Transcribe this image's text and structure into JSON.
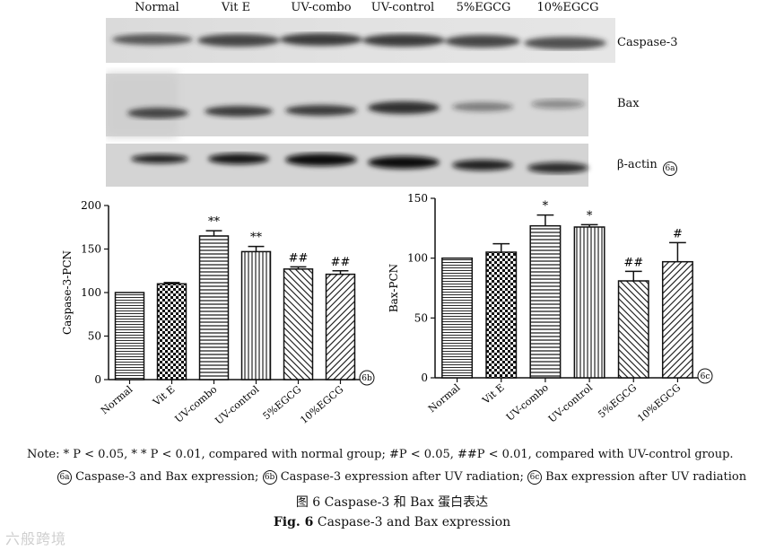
{
  "blot": {
    "lanes": [
      "Normal",
      "Vit E",
      "UV-combo",
      "UV-control",
      "5%EGCG",
      "10%EGCG"
    ],
    "bands": [
      "Caspase-3",
      "Bax",
      "β-actin"
    ],
    "badge": "6a"
  },
  "chart_data": [
    {
      "type": "bar",
      "ylabel": "Caspase-3-PCN",
      "categories": [
        "Normal",
        "Vit E",
        "UV-combo",
        "UV-control",
        "5%EGCG",
        "10%EGCG"
      ],
      "values": [
        100,
        110,
        165,
        147,
        127,
        121
      ],
      "errors": [
        0,
        1.5,
        6,
        6,
        2.5,
        4
      ],
      "annotations": [
        "",
        "",
        "**",
        "**",
        "##",
        "##"
      ],
      "ylim": [
        0,
        200
      ],
      "yticks": [
        "0",
        "50",
        "100",
        "150",
        "200"
      ],
      "badge": "6b"
    },
    {
      "type": "bar",
      "ylabel": "Bax-PCN",
      "categories": [
        "Normal",
        "Vit E",
        "UV-combo",
        "UV-control",
        "5%EGCG",
        "10%EGCG"
      ],
      "values": [
        100,
        105,
        127,
        126,
        81,
        97
      ],
      "errors": [
        0,
        7,
        9,
        2,
        8,
        16
      ],
      "annotations": [
        "",
        "",
        "*",
        "*",
        "##",
        "#"
      ],
      "ylim": [
        0,
        150
      ],
      "yticks": [
        "0",
        "50",
        "100",
        "150"
      ],
      "badge": "6c"
    }
  ],
  "notes": {
    "line1": "Note: * P < 0.05,  * * P < 0.01,  compared with normal group;  #P < 0.05,  ##P < 0.01,  compared with UV-control group.",
    "badge_a": "6a",
    "line2a": "Caspase-3 and Bax expression;",
    "badge_b": "6b",
    "line2b": "Caspase-3 expression after UV radiation;",
    "badge_c": "6c",
    "line2c": "Bax expression after UV radiation"
  },
  "captions": {
    "cn": "图 6    Caspase-3 和 Bax 蛋白表达",
    "en_bold": "Fig. 6",
    "en": "    Caspase-3 and Bax expression"
  },
  "watermark": "六般跨境"
}
